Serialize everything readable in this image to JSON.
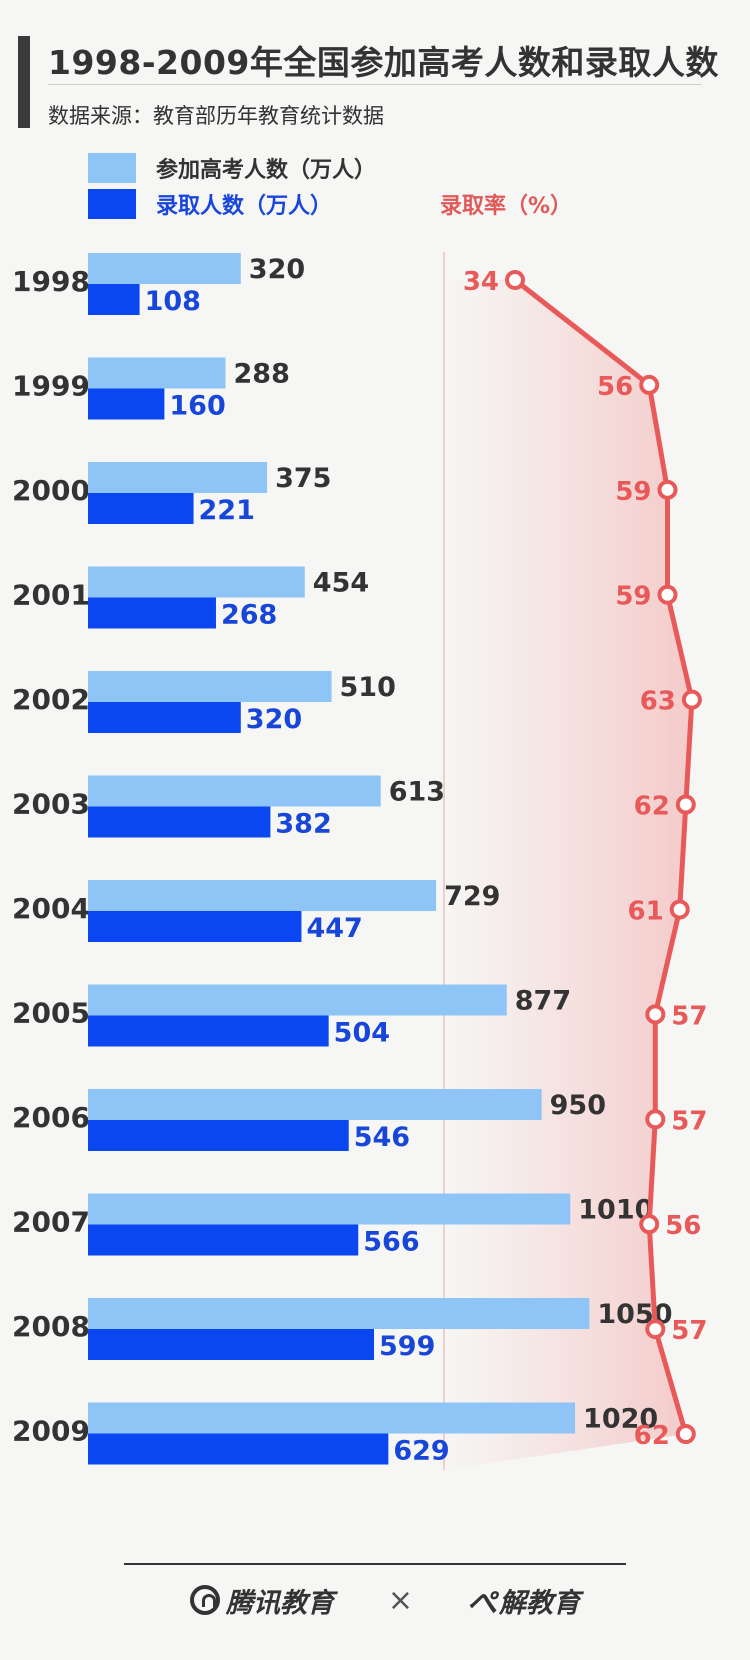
{
  "title": "1998-2009年全国参加高考人数和录取人数",
  "source": "数据来源：教育部历年教育统计数据",
  "legend": {
    "applicants": "参加高考人数（万人）",
    "admitted": "录取人数（万人）",
    "rate": "录取率（%）"
  },
  "colors": {
    "applicants": "#8ec5f6",
    "admitted": "#0a47f0",
    "rate": "#e85a5a",
    "applicants_label": "#333333",
    "admitted_label": "#1746d9"
  },
  "chart_data": {
    "type": "bar",
    "orientation": "horizontal",
    "categories": [
      "1998",
      "1999",
      "2000",
      "2001",
      "2002",
      "2003",
      "2004",
      "2005",
      "2006",
      "2007",
      "2008",
      "2009"
    ],
    "series": [
      {
        "name": "参加高考人数（万人）",
        "values": [
          320,
          288,
          375,
          454,
          510,
          613,
          729,
          877,
          950,
          1010,
          1050,
          1020
        ]
      },
      {
        "name": "录取人数（万人）",
        "values": [
          108,
          160,
          221,
          268,
          320,
          382,
          447,
          504,
          546,
          566,
          599,
          629
        ]
      }
    ],
    "line_series": {
      "name": "录取率（%）",
      "values": [
        34,
        56,
        59,
        59,
        63,
        62,
        61,
        57,
        57,
        56,
        57,
        62
      ]
    }
  },
  "footer": {
    "brand1": "腾讯教育",
    "separator": "×",
    "brand2": "解教育"
  }
}
